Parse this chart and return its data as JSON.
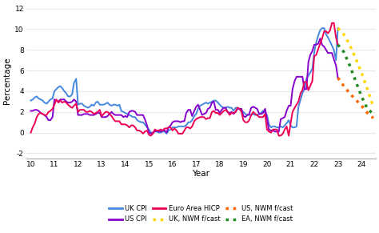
{
  "title": "",
  "ylabel": "Percentage",
  "xlabel": "Year",
  "xlim": [
    9.8,
    24.6
  ],
  "ylim": [
    -2.5,
    12.5
  ],
  "yticks": [
    -2,
    0,
    2,
    4,
    6,
    8,
    10,
    12
  ],
  "xticks": [
    10,
    11,
    12,
    13,
    14,
    15,
    16,
    17,
    18,
    19,
    20,
    21,
    22,
    23,
    24
  ],
  "background_color": "#ffffff",
  "grid_color": "#e8e8e8",
  "uk_cpi_x": [
    10.0,
    10.08,
    10.17,
    10.25,
    10.33,
    10.42,
    10.5,
    10.58,
    10.67,
    10.75,
    10.83,
    10.92,
    11.0,
    11.08,
    11.17,
    11.25,
    11.33,
    11.42,
    11.5,
    11.58,
    11.67,
    11.75,
    11.83,
    11.92,
    12.0,
    12.08,
    12.17,
    12.25,
    12.33,
    12.42,
    12.5,
    12.58,
    12.67,
    12.75,
    12.83,
    12.92,
    13.0,
    13.08,
    13.17,
    13.25,
    13.33,
    13.42,
    13.5,
    13.58,
    13.67,
    13.75,
    13.83,
    13.92,
    14.0,
    14.08,
    14.17,
    14.25,
    14.33,
    14.42,
    14.5,
    14.58,
    14.67,
    14.75,
    14.83,
    14.92,
    15.0,
    15.08,
    15.17,
    15.25,
    15.33,
    15.42,
    15.5,
    15.58,
    15.67,
    15.75,
    15.83,
    15.92,
    16.0,
    16.08,
    16.17,
    16.25,
    16.33,
    16.42,
    16.5,
    16.58,
    16.67,
    16.75,
    16.83,
    16.92,
    17.0,
    17.08,
    17.17,
    17.25,
    17.33,
    17.42,
    17.5,
    17.58,
    17.67,
    17.75,
    17.83,
    17.92,
    18.0,
    18.08,
    18.17,
    18.25,
    18.33,
    18.42,
    18.5,
    18.58,
    18.67,
    18.75,
    18.83,
    18.92,
    19.0,
    19.08,
    19.17,
    19.25,
    19.33,
    19.42,
    19.5,
    19.58,
    19.67,
    19.75,
    19.83,
    19.92,
    20.0,
    20.08,
    20.17,
    20.25,
    20.33,
    20.42,
    20.5,
    20.58,
    20.67,
    20.75,
    20.83,
    20.92,
    21.0,
    21.08,
    21.17,
    21.25,
    21.33,
    21.42,
    21.5,
    21.58,
    21.67,
    21.75,
    21.83,
    21.92,
    22.0,
    22.08,
    22.17,
    22.25,
    22.33,
    22.42,
    22.5,
    22.58,
    22.67,
    22.75,
    22.83,
    22.92,
    23.0
  ],
  "uk_cpi_y": [
    3.1,
    3.2,
    3.4,
    3.5,
    3.3,
    3.2,
    3.1,
    2.9,
    2.8,
    3.0,
    3.2,
    3.3,
    4.0,
    4.2,
    4.4,
    4.5,
    4.3,
    4.0,
    3.8,
    3.5,
    3.5,
    3.7,
    4.8,
    5.2,
    2.7,
    2.8,
    2.8,
    2.6,
    2.5,
    2.4,
    2.5,
    2.7,
    2.6,
    2.9,
    3.0,
    2.7,
    2.7,
    2.7,
    2.8,
    2.9,
    2.7,
    2.6,
    2.7,
    2.7,
    2.6,
    2.7,
    2.1,
    2.0,
    1.9,
    1.8,
    1.7,
    1.6,
    1.5,
    1.5,
    1.2,
    1.1,
    1.0,
    1.0,
    0.8,
    0.5,
    0.3,
    0.0,
    0.0,
    0.1,
    0.1,
    0.0,
    0.0,
    0.1,
    0.1,
    -0.1,
    0.2,
    0.3,
    0.5,
    0.5,
    0.5,
    0.6,
    0.6,
    0.6,
    0.6,
    0.7,
    1.0,
    1.0,
    1.2,
    1.6,
    1.8,
    2.3,
    2.6,
    2.7,
    2.8,
    2.9,
    2.8,
    2.9,
    3.0,
    3.1,
    3.1,
    2.9,
    2.7,
    2.5,
    2.4,
    2.4,
    2.5,
    2.4,
    2.4,
    2.1,
    2.4,
    2.4,
    2.3,
    2.1,
    2.0,
    1.8,
    1.7,
    1.7,
    1.7,
    1.8,
    1.7,
    1.7,
    1.8,
    1.9,
    2.1,
    1.9,
    1.7,
    0.8,
    0.5,
    0.6,
    0.6,
    0.5,
    0.5,
    0.6,
    0.5,
    0.7,
    0.9,
    1.2,
    0.7,
    0.5,
    0.5,
    0.6,
    2.5,
    3.2,
    3.8,
    4.2,
    5.2,
    5.5,
    5.8,
    6.2,
    7.8,
    8.7,
    9.4,
    9.9,
    10.1,
    10.1,
    9.5,
    9.2,
    8.8,
    8.4,
    8.0,
    7.0,
    10.1
  ],
  "us_cpi_x": [
    10.0,
    10.08,
    10.17,
    10.25,
    10.33,
    10.42,
    10.5,
    10.58,
    10.67,
    10.75,
    10.83,
    10.92,
    11.0,
    11.08,
    11.17,
    11.25,
    11.33,
    11.42,
    11.5,
    11.58,
    11.67,
    11.75,
    11.83,
    11.92,
    12.0,
    12.08,
    12.17,
    12.25,
    12.33,
    12.42,
    12.5,
    12.58,
    12.67,
    12.75,
    12.83,
    12.92,
    13.0,
    13.08,
    13.17,
    13.25,
    13.33,
    13.42,
    13.5,
    13.58,
    13.67,
    13.75,
    13.83,
    13.92,
    14.0,
    14.08,
    14.17,
    14.25,
    14.33,
    14.42,
    14.5,
    14.58,
    14.67,
    14.75,
    14.83,
    14.92,
    15.0,
    15.08,
    15.17,
    15.25,
    15.33,
    15.42,
    15.5,
    15.58,
    15.67,
    15.75,
    15.83,
    15.92,
    16.0,
    16.08,
    16.17,
    16.25,
    16.33,
    16.42,
    16.5,
    16.58,
    16.67,
    16.75,
    16.83,
    16.92,
    17.0,
    17.08,
    17.17,
    17.25,
    17.33,
    17.42,
    17.5,
    17.58,
    17.67,
    17.75,
    17.83,
    17.92,
    18.0,
    18.08,
    18.17,
    18.25,
    18.33,
    18.42,
    18.5,
    18.58,
    18.67,
    18.75,
    18.83,
    18.92,
    19.0,
    19.08,
    19.17,
    19.25,
    19.33,
    19.42,
    19.5,
    19.58,
    19.67,
    19.75,
    19.83,
    19.92,
    20.0,
    20.08,
    20.17,
    20.25,
    20.33,
    20.42,
    20.5,
    20.58,
    20.67,
    20.75,
    20.83,
    20.92,
    21.0,
    21.08,
    21.17,
    21.25,
    21.33,
    21.42,
    21.5,
    21.58,
    21.67,
    21.75,
    21.83,
    21.92,
    22.0,
    22.08,
    22.17,
    22.25,
    22.33,
    22.42,
    22.5,
    22.58,
    22.67,
    22.75,
    22.83,
    22.92,
    23.0
  ],
  "us_cpi_y": [
    2.1,
    2.1,
    2.2,
    2.2,
    2.1,
    1.9,
    1.8,
    1.7,
    1.5,
    1.2,
    1.2,
    1.5,
    3.2,
    3.1,
    3.0,
    3.2,
    3.2,
    3.2,
    3.0,
    2.9,
    2.9,
    3.0,
    3.2,
    3.0,
    1.7,
    1.7,
    1.7,
    1.8,
    1.8,
    1.8,
    1.7,
    1.7,
    1.7,
    1.8,
    1.9,
    1.9,
    1.5,
    1.5,
    1.5,
    1.6,
    1.8,
    2.0,
    1.8,
    1.7,
    1.7,
    1.7,
    1.7,
    1.5,
    1.6,
    1.5,
    2.0,
    2.1,
    2.1,
    2.0,
    1.7,
    1.7,
    1.7,
    1.7,
    1.3,
    0.7,
    0.0,
    -0.1,
    0.0,
    0.1,
    0.2,
    0.1,
    0.1,
    0.2,
    0.2,
    0.0,
    0.5,
    0.7,
    1.0,
    1.1,
    1.1,
    1.1,
    1.0,
    1.1,
    1.1,
    1.9,
    2.2,
    2.2,
    1.6,
    2.1,
    2.5,
    2.7,
    2.2,
    1.7,
    1.8,
    1.9,
    2.3,
    2.4,
    2.9,
    3.0,
    2.2,
    2.2,
    1.9,
    2.2,
    2.4,
    2.4,
    2.0,
    1.9,
    2.0,
    1.8,
    2.0,
    2.3,
    2.3,
    2.3,
    1.6,
    1.5,
    1.7,
    1.8,
    2.4,
    2.5,
    2.4,
    2.3,
    1.8,
    1.8,
    1.9,
    2.3,
    1.3,
    0.3,
    0.2,
    0.2,
    0.1,
    0.1,
    0.1,
    1.3,
    1.4,
    1.5,
    2.1,
    2.6,
    2.6,
    4.2,
    5.0,
    5.4,
    5.4,
    5.4,
    5.4,
    4.2,
    4.2,
    6.8,
    7.5,
    7.9,
    8.5,
    8.5,
    8.6,
    9.1,
    8.5,
    8.3,
    8.0,
    7.7,
    7.7,
    7.7,
    7.1,
    6.5,
    5.3
  ],
  "ea_hicp_x": [
    10.0,
    10.08,
    10.17,
    10.25,
    10.33,
    10.42,
    10.5,
    10.58,
    10.67,
    10.75,
    10.83,
    10.92,
    11.0,
    11.08,
    11.17,
    11.25,
    11.33,
    11.42,
    11.5,
    11.58,
    11.67,
    11.75,
    11.83,
    11.92,
    12.0,
    12.08,
    12.17,
    12.25,
    12.33,
    12.42,
    12.5,
    12.58,
    12.67,
    12.75,
    12.83,
    12.92,
    13.0,
    13.08,
    13.17,
    13.25,
    13.33,
    13.42,
    13.5,
    13.58,
    13.67,
    13.75,
    13.83,
    13.92,
    14.0,
    14.08,
    14.17,
    14.25,
    14.33,
    14.42,
    14.5,
    14.58,
    14.67,
    14.75,
    14.83,
    14.92,
    15.0,
    15.08,
    15.17,
    15.25,
    15.33,
    15.42,
    15.5,
    15.58,
    15.67,
    15.75,
    15.83,
    15.92,
    16.0,
    16.08,
    16.17,
    16.25,
    16.33,
    16.42,
    16.5,
    16.58,
    16.67,
    16.75,
    16.83,
    16.92,
    17.0,
    17.08,
    17.17,
    17.25,
    17.33,
    17.42,
    17.5,
    17.58,
    17.67,
    17.75,
    17.83,
    17.92,
    18.0,
    18.08,
    18.17,
    18.25,
    18.33,
    18.42,
    18.5,
    18.58,
    18.67,
    18.75,
    18.83,
    18.92,
    19.0,
    19.08,
    19.17,
    19.25,
    19.33,
    19.42,
    19.5,
    19.58,
    19.67,
    19.75,
    19.83,
    19.92,
    20.0,
    20.08,
    20.17,
    20.25,
    20.33,
    20.42,
    20.5,
    20.58,
    20.67,
    20.75,
    20.83,
    20.92,
    21.0,
    21.08,
    21.17,
    21.25,
    21.33,
    21.42,
    21.5,
    21.58,
    21.67,
    21.75,
    21.83,
    21.92,
    22.0,
    22.08,
    22.17,
    22.25,
    22.33,
    22.42,
    22.5,
    22.58,
    22.67,
    22.75,
    22.83,
    22.92,
    23.0
  ],
  "ea_hicp_y": [
    0.0,
    0.5,
    0.9,
    1.5,
    1.8,
    1.9,
    1.8,
    1.7,
    1.7,
    2.0,
    2.1,
    2.3,
    2.7,
    3.2,
    2.9,
    3.1,
    2.9,
    3.0,
    2.9,
    2.7,
    2.5,
    2.4,
    2.6,
    2.8,
    2.0,
    2.2,
    2.2,
    2.2,
    2.0,
    2.0,
    2.1,
    2.0,
    1.8,
    1.9,
    2.0,
    2.2,
    1.6,
    1.8,
    2.0,
    2.0,
    1.8,
    1.6,
    1.3,
    1.1,
    1.1,
    1.1,
    0.8,
    0.8,
    0.8,
    0.7,
    0.5,
    0.7,
    0.7,
    0.5,
    0.2,
    0.2,
    0.1,
    -0.1,
    0.1,
    0.2,
    -0.2,
    -0.3,
    -0.1,
    0.3,
    0.2,
    0.2,
    0.3,
    0.2,
    0.4,
    0.4,
    0.5,
    0.5,
    0.2,
    0.4,
    0.2,
    -0.1,
    -0.1,
    -0.1,
    0.2,
    0.5,
    0.5,
    0.4,
    0.6,
    1.1,
    1.3,
    1.4,
    1.5,
    1.5,
    1.5,
    1.3,
    1.4,
    1.4,
    2.0,
    2.1,
    1.9,
    1.9,
    1.7,
    1.9,
    2.1,
    2.2,
    2.0,
    1.7,
    1.9,
    1.9,
    2.0,
    2.4,
    2.3,
    2.0,
    1.2,
    1.0,
    1.0,
    1.2,
    1.7,
    2.0,
    1.8,
    1.7,
    1.5,
    1.5,
    1.5,
    1.8,
    0.3,
    0.1,
    0.0,
    0.3,
    0.3,
    0.3,
    -0.3,
    -0.3,
    -0.1,
    0.3,
    0.6,
    -0.3,
    0.9,
    2.0,
    2.4,
    2.7,
    3.0,
    3.8,
    4.1,
    4.9,
    4.9,
    4.1,
    4.5,
    5.0,
    7.4,
    7.5,
    8.1,
    8.6,
    9.1,
    9.8,
    9.8,
    9.6,
    9.9,
    10.6,
    10.6,
    9.2,
    8.5
  ],
  "uk_fcast_x": [
    23.0,
    23.25,
    23.5,
    23.75,
    24.0,
    24.25,
    24.5
  ],
  "uk_fcast_y": [
    10.1,
    9.5,
    8.5,
    7.2,
    5.8,
    4.2,
    2.5
  ],
  "us_fcast_x": [
    23.0,
    23.25,
    23.5,
    23.75,
    24.0,
    24.25,
    24.5
  ],
  "us_fcast_y": [
    5.3,
    4.5,
    3.8,
    3.2,
    2.6,
    1.9,
    1.4
  ],
  "ea_fcast_x": [
    23.0,
    23.25,
    23.5,
    23.75,
    24.0,
    24.25,
    24.5
  ],
  "ea_fcast_y": [
    8.5,
    7.8,
    6.5,
    5.0,
    3.5,
    2.3,
    1.8
  ],
  "uk_fcast_color": "#ffd700",
  "us_fcast_color": "#ff6600",
  "ea_fcast_color": "#228B22",
  "uk_cpi_color": "#4488dd",
  "us_cpi_color": "#8800cc",
  "ea_hicp_color": "#ee0055",
  "legend_items": [
    {
      "label": "UK CPI",
      "color": "#4488dd",
      "linestyle": "solid"
    },
    {
      "label": "US CPI",
      "color": "#8800cc",
      "linestyle": "solid"
    },
    {
      "label": "Euro Area HICP",
      "color": "#ee0055",
      "linestyle": "solid"
    },
    {
      "label": "UK, NWM f/cast",
      "color": "#ffd700",
      "linestyle": "dotted"
    },
    {
      "label": "US, NWM f/cast",
      "color": "#ff6600",
      "linestyle": "dotted"
    },
    {
      "label": "EA, NWM f/cast",
      "color": "#228B22",
      "linestyle": "dotted"
    }
  ]
}
